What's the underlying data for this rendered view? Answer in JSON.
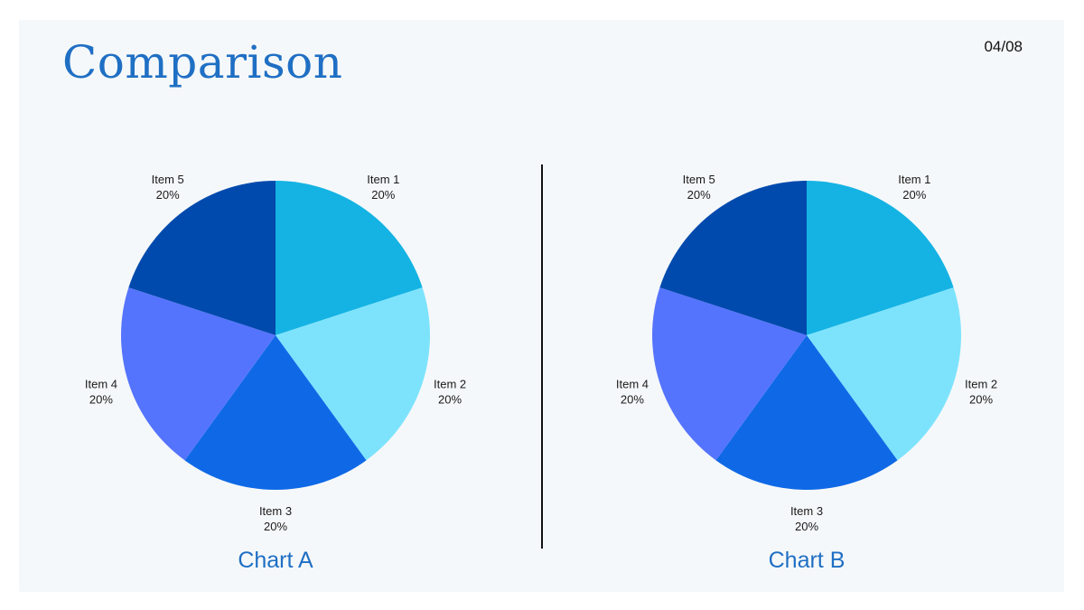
{
  "slide": {
    "title": "Comparison",
    "page_number": "04/08"
  },
  "chart_data": [
    {
      "type": "pie",
      "caption": "Chart A",
      "categories": [
        "Item 1",
        "Item 2",
        "Item 3",
        "Item 4",
        "Item 5"
      ],
      "values": [
        20,
        20,
        20,
        20,
        20
      ],
      "value_labels": [
        "20%",
        "20%",
        "20%",
        "20%",
        "20%"
      ],
      "colors": [
        "#14b3e3",
        "#7de3fd",
        "#0f69e6",
        "#5574fd",
        "#004aad"
      ]
    },
    {
      "type": "pie",
      "caption": "Chart B",
      "categories": [
        "Item 1",
        "Item 2",
        "Item 3",
        "Item 4",
        "Item 5"
      ],
      "values": [
        20,
        20,
        20,
        20,
        20
      ],
      "value_labels": [
        "20%",
        "20%",
        "20%",
        "20%",
        "20%"
      ],
      "colors": [
        "#14b3e3",
        "#7de3fd",
        "#0f69e6",
        "#5574fd",
        "#004aad"
      ]
    }
  ]
}
